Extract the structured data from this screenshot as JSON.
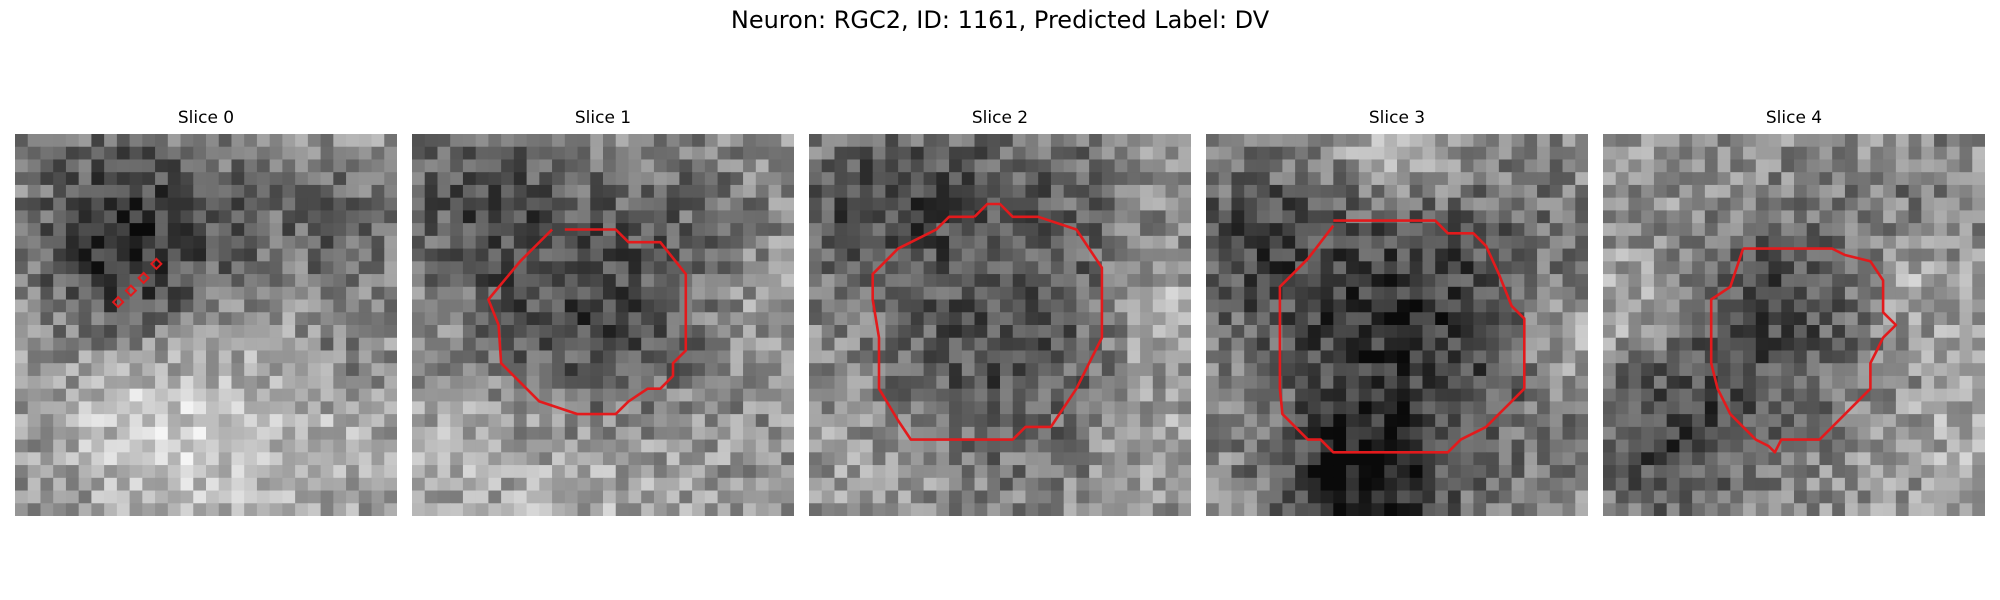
{
  "title": "Neuron: RGC2, ID: 1161, Predicted Label: DV",
  "outline_color": "#e31a1c",
  "panels": [
    {
      "label": "Slice 0"
    },
    {
      "label": "Slice 1"
    },
    {
      "label": "Slice 2"
    },
    {
      "label": "Slice 3"
    },
    {
      "label": "Slice 4"
    }
  ]
}
